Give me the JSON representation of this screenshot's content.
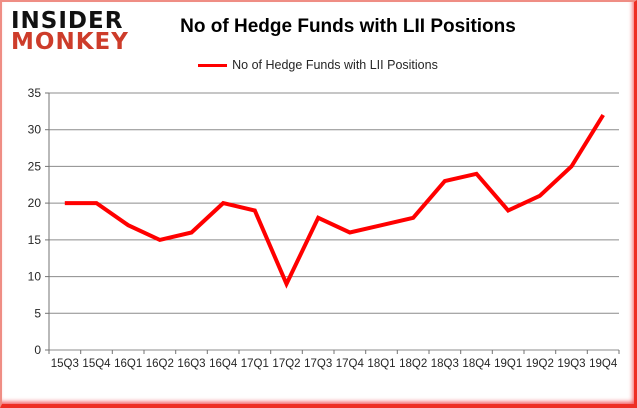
{
  "logo": {
    "line1": "INSIDER",
    "line2": "MONKEY"
  },
  "header": {
    "title": "No of Hedge Funds with LII Positions"
  },
  "legend": {
    "label": "No of Hedge Funds with LII Positions",
    "line_color": "#ff0000"
  },
  "chart_data": {
    "type": "line",
    "title": "No of Hedge Funds with LII Positions",
    "categories": [
      "15Q3",
      "15Q4",
      "16Q1",
      "16Q2",
      "16Q3",
      "16Q4",
      "17Q1",
      "17Q2",
      "17Q3",
      "17Q4",
      "18Q1",
      "18Q2",
      "18Q3",
      "18Q4",
      "19Q1",
      "19Q2",
      "19Q3",
      "19Q4"
    ],
    "series": [
      {
        "name": "No of Hedge Funds with LII Positions",
        "color": "#ff0000",
        "values": [
          20,
          20,
          17,
          15,
          16,
          20,
          19,
          9,
          18,
          16,
          17,
          18,
          23,
          24,
          19,
          21,
          25,
          32
        ]
      }
    ],
    "xlabel": "",
    "ylabel": "",
    "ylim": [
      0,
      35
    ],
    "ytick_step": 5,
    "yticks": [
      0,
      5,
      10,
      15,
      20,
      25,
      30,
      35
    ],
    "grid": true,
    "legend_position": "top",
    "gridline_color": "#8c8c8c",
    "axis_color": "#737373"
  }
}
